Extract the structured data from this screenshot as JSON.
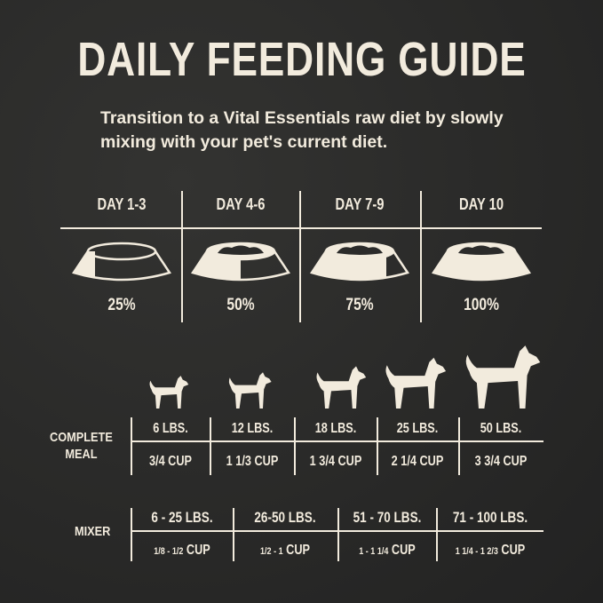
{
  "title": "DAILY FEEDING GUIDE",
  "subtitle": [
    "Transition to a Vital Essentials raw diet by slowly",
    "mixing with your pet's current diet."
  ],
  "colors": {
    "background": "#2b2b2a",
    "text": "#f2ebdd"
  },
  "transition": [
    {
      "day": "DAY 1-3",
      "percent": "25%",
      "fill": 0.25
    },
    {
      "day": "DAY 4-6",
      "percent": "50%",
      "fill": 0.5
    },
    {
      "day": "DAY 7-9",
      "percent": "75%",
      "fill": 0.75
    },
    {
      "day": "DAY 10",
      "percent": "100%",
      "fill": 1.0
    }
  ],
  "complete_meal": {
    "label": [
      "COMPLETE",
      "MEAL"
    ],
    "rows": [
      {
        "weight": "6 LBS.",
        "cup": "3/4 CUP",
        "icon": "chihuahua-icon"
      },
      {
        "weight": "12 LBS.",
        "cup": "1 1/3 CUP",
        "icon": "poodle-icon"
      },
      {
        "weight": "18 LBS.",
        "cup": "1 3/4 CUP",
        "icon": "pug-icon"
      },
      {
        "weight": "25 LBS.",
        "cup": "2 1/4 CUP",
        "icon": "shiba-icon"
      },
      {
        "weight": "50 LBS.",
        "cup": "3 3/4 CUP",
        "icon": "retriever-icon"
      }
    ]
  },
  "mixer": {
    "label": "MIXER",
    "rows": [
      {
        "weight": "6 - 25 LBS.",
        "amount": "1/8 - 1/2",
        "unit": "CUP"
      },
      {
        "weight": "26-50 LBS.",
        "amount": "1/2 - 1",
        "unit": "CUP"
      },
      {
        "weight": "51 - 70 LBS.",
        "amount": "1 - 1 1/4",
        "unit": "CUP"
      },
      {
        "weight": "71 - 100 LBS.",
        "amount": "1 1/4 - 1 2/3",
        "unit": "CUP"
      }
    ]
  }
}
